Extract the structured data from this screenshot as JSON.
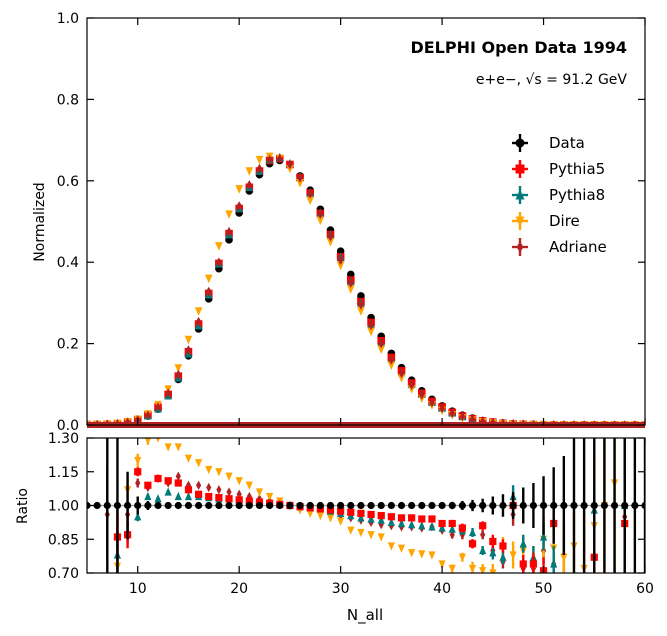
{
  "chart_data": {
    "type": "scatter",
    "title": "DELPHI Open Data 1994",
    "subtitle": "e+e−, √s = 91.2 GeV",
    "xlabel": "N_all",
    "xlim": [
      5,
      60
    ],
    "xticks": [
      "10",
      "20",
      "30",
      "40",
      "50",
      "60"
    ],
    "main_panel": {
      "ylabel": "Normalized",
      "ylim": [
        0.0,
        1.0
      ],
      "yticks": [
        "0.0",
        "0.2",
        "0.4",
        "0.6",
        "0.8",
        "1.0"
      ]
    },
    "ratio_panel": {
      "ylabel": "Ratio",
      "ylim": [
        0.7,
        1.3
      ],
      "yticks": [
        "0.70",
        "0.85",
        "1.00",
        "1.15",
        "1.30"
      ],
      "reference_line": 1.0
    },
    "legend": {
      "position": "center-right",
      "entries": [
        "Data",
        "Pythia5",
        "Pythia8",
        "Dire",
        "Adriane"
      ]
    },
    "x": [
      5,
      6,
      7,
      8,
      9,
      10,
      11,
      12,
      13,
      14,
      15,
      16,
      17,
      18,
      19,
      20,
      21,
      22,
      23,
      24,
      25,
      26,
      27,
      28,
      29,
      30,
      31,
      32,
      33,
      34,
      35,
      36,
      37,
      38,
      39,
      40,
      41,
      42,
      43,
      44,
      45,
      46,
      47,
      48,
      49,
      50,
      51,
      52,
      53,
      54,
      55,
      56,
      57,
      58,
      59,
      60
    ],
    "series": [
      {
        "name": "Data",
        "color": "#000000",
        "marker": "circle",
        "values": [
          0.001,
          0.001,
          0.002,
          0.003,
          0.006,
          0.012,
          0.022,
          0.039,
          0.072,
          0.112,
          0.17,
          0.236,
          0.31,
          0.384,
          0.455,
          0.521,
          0.575,
          0.615,
          0.642,
          0.65,
          0.64,
          0.612,
          0.577,
          0.53,
          0.479,
          0.427,
          0.37,
          0.317,
          0.264,
          0.218,
          0.176,
          0.141,
          0.11,
          0.084,
          0.063,
          0.047,
          0.034,
          0.024,
          0.017,
          0.011,
          0.0075,
          0.005,
          0.003,
          0.002,
          0.0013,
          0.0008,
          0.0005,
          0.0003,
          0.0002,
          0.0001,
          0.0001,
          0.0001,
          0.0,
          0.0,
          0.0,
          0.0
        ],
        "ratio": [
          1.0,
          1.0,
          1.0,
          1.0,
          1.0,
          1.0,
          1.0,
          1.0,
          1.0,
          1.0,
          1.0,
          1.0,
          1.0,
          1.0,
          1.0,
          1.0,
          1.0,
          1.0,
          1.0,
          1.0,
          1.0,
          1.0,
          1.0,
          1.0,
          1.0,
          1.0,
          1.0,
          1.0,
          1.0,
          1.0,
          1.0,
          1.0,
          1.0,
          1.0,
          1.0,
          1.0,
          1.0,
          1.0,
          1.0,
          1.0,
          1.0,
          1.0,
          1.0,
          1.0,
          1.0,
          1.0,
          1.0,
          1.0,
          1.0,
          1.0,
          1.0,
          1.0,
          1.0,
          1.0,
          1.0,
          1.0
        ],
        "ratio_err": [
          0,
          0,
          0.35,
          0.3,
          0.15,
          0.04,
          0.02,
          0.01,
          0.006,
          0.005,
          0.004,
          0.003,
          0.003,
          0.003,
          0.003,
          0.003,
          0.003,
          0.003,
          0.003,
          0.003,
          0.003,
          0.003,
          0.003,
          0.003,
          0.003,
          0.004,
          0.004,
          0.004,
          0.005,
          0.005,
          0.006,
          0.007,
          0.008,
          0.009,
          0.011,
          0.013,
          0.016,
          0.02,
          0.025,
          0.03,
          0.04,
          0.05,
          0.06,
          0.08,
          0.1,
          0.13,
          0.17,
          0.22,
          0.3,
          0.35,
          0.4,
          0.45,
          0.5,
          0.5,
          0.5,
          0.5
        ]
      },
      {
        "name": "Pythia5",
        "color": "#ff0000",
        "marker": "square",
        "values": [
          0.001,
          0.001,
          0.002,
          0.003,
          0.007,
          0.013,
          0.024,
          0.044,
          0.075,
          0.12,
          0.18,
          0.248,
          0.323,
          0.397,
          0.47,
          0.532,
          0.584,
          0.624,
          0.65,
          0.655,
          0.64,
          0.608,
          0.57,
          0.52,
          0.468,
          0.413,
          0.356,
          0.303,
          0.252,
          0.207,
          0.166,
          0.133,
          0.103,
          0.078,
          0.058,
          0.044,
          0.031,
          0.022,
          0.015,
          0.01,
          0.007,
          0.004,
          0.003,
          0.002,
          0.0011,
          0.0007,
          0.0004,
          0.0002,
          0.0001,
          0.0001,
          0.0001,
          0.0,
          0.0,
          0.0,
          0.0,
          0.0
        ],
        "ratio": [
          null,
          null,
          null,
          0.86,
          0.87,
          1.15,
          1.09,
          1.12,
          1.11,
          1.1,
          1.07,
          1.05,
          1.04,
          1.035,
          1.03,
          1.025,
          1.02,
          1.015,
          1.01,
          1.005,
          1.0,
          0.995,
          0.99,
          0.985,
          0.98,
          0.975,
          0.97,
          0.965,
          0.96,
          0.955,
          0.95,
          0.945,
          0.945,
          0.94,
          0.94,
          0.92,
          0.92,
          0.9,
          0.83,
          0.91,
          0.84,
          0.82,
          1.0,
          0.74,
          0.74,
          0.71,
          0.92,
          null,
          null,
          null,
          0.77,
          null,
          null,
          0.92,
          null,
          null
        ],
        "ratio_err": [
          0,
          0,
          0,
          0.1,
          0.06,
          0.02,
          0.012,
          0.008,
          0.006,
          0.005,
          0.004,
          0.003,
          0.003,
          0.003,
          0.003,
          0.003,
          0.003,
          0.003,
          0.003,
          0.003,
          0.003,
          0.003,
          0.003,
          0.003,
          0.003,
          0.004,
          0.004,
          0.004,
          0.005,
          0.005,
          0.006,
          0.007,
          0.008,
          0.009,
          0.011,
          0.013,
          0.016,
          0.02,
          0.02,
          0.02,
          0.03,
          0.03,
          0.04,
          0.04,
          0.05,
          0.06,
          0.08,
          0,
          0,
          0,
          0.1,
          0,
          0,
          0.1,
          0,
          0
        ]
      },
      {
        "name": "Pythia8",
        "color": "#007a7a",
        "marker": "triangle-up",
        "values": [
          0.001,
          0.001,
          0.002,
          0.003,
          0.006,
          0.012,
          0.023,
          0.04,
          0.072,
          0.116,
          0.175,
          0.244,
          0.32,
          0.396,
          0.468,
          0.532,
          0.584,
          0.624,
          0.652,
          0.657,
          0.642,
          0.61,
          0.571,
          0.521,
          0.468,
          0.412,
          0.353,
          0.3,
          0.248,
          0.203,
          0.162,
          0.129,
          0.1,
          0.076,
          0.056,
          0.042,
          0.03,
          0.021,
          0.014,
          0.009,
          0.006,
          0.004,
          0.003,
          0.002,
          0.001,
          0.0007,
          0.0004,
          0.0002,
          0.0001,
          0.0001,
          0.0,
          0.0,
          0.0,
          0.0,
          0.0,
          0.0
        ],
        "ratio": [
          null,
          null,
          null,
          0.78,
          0.88,
          0.95,
          1.04,
          1.03,
          1.06,
          1.04,
          1.04,
          1.04,
          1.035,
          1.03,
          1.03,
          1.025,
          1.02,
          1.015,
          1.01,
          1.005,
          1.0,
          0.995,
          0.99,
          0.985,
          0.975,
          0.965,
          0.955,
          0.945,
          0.94,
          0.935,
          0.925,
          0.92,
          0.915,
          0.91,
          0.905,
          0.9,
          0.895,
          0.89,
          0.88,
          0.8,
          0.79,
          0.77,
          1.04,
          0.83,
          0.77,
          0.86,
          0.74,
          null,
          null,
          null,
          0.98,
          null,
          null,
          1.0,
          null,
          null
        ],
        "ratio_err": [
          0,
          0,
          0,
          0.1,
          0.05,
          0.02,
          0.012,
          0.008,
          0.006,
          0.005,
          0.004,
          0.003,
          0.003,
          0.003,
          0.003,
          0.003,
          0.003,
          0.003,
          0.003,
          0.003,
          0.003,
          0.003,
          0.003,
          0.003,
          0.003,
          0.004,
          0.004,
          0.004,
          0.005,
          0.005,
          0.006,
          0.007,
          0.008,
          0.009,
          0.011,
          0.013,
          0.016,
          0.02,
          0.02,
          0.02,
          0.03,
          0.03,
          0.05,
          0.04,
          0.05,
          0.06,
          0.08,
          0,
          0,
          0,
          0.12,
          0,
          0,
          0.12,
          0,
          0
        ]
      },
      {
        "name": "Dire",
        "color": "#ffa500",
        "marker": "triangle-down",
        "values": [
          0.001,
          0.001,
          0.002,
          0.004,
          0.008,
          0.014,
          0.027,
          0.05,
          0.088,
          0.14,
          0.21,
          0.28,
          0.36,
          0.44,
          0.518,
          0.58,
          0.624,
          0.652,
          0.66,
          0.655,
          0.63,
          0.595,
          0.552,
          0.503,
          0.45,
          0.392,
          0.334,
          0.28,
          0.23,
          0.186,
          0.147,
          0.116,
          0.089,
          0.066,
          0.049,
          0.036,
          0.025,
          0.017,
          0.012,
          0.008,
          0.005,
          0.003,
          0.002,
          0.001,
          0.0007,
          0.0004,
          0.0002,
          0.0001,
          0.0001,
          0.0,
          0.0,
          0.0,
          0.0,
          0.0,
          0.0,
          0.0
        ],
        "ratio": [
          null,
          null,
          null,
          0.73,
          1.07,
          1.2,
          1.29,
          1.3,
          1.26,
          1.26,
          1.21,
          1.19,
          1.16,
          1.15,
          1.13,
          1.11,
          1.09,
          1.06,
          1.04,
          1.02,
          1.0,
          0.98,
          0.965,
          0.955,
          0.945,
          0.93,
          0.89,
          0.88,
          0.87,
          0.86,
          0.82,
          0.81,
          0.79,
          0.785,
          0.78,
          0.74,
          0.72,
          0.77,
          0.72,
          0.71,
          0.7,
          0.81,
          0.78,
          0.8,
          0.74,
          0.85,
          0.81,
          0.77,
          0.82,
          0.72,
          0.91,
          1.0,
          1.1,
          null,
          null,
          null
        ],
        "ratio_err": [
          0,
          0,
          0,
          0.1,
          0.06,
          0.03,
          0.02,
          0.01,
          0.008,
          0.006,
          0.005,
          0.004,
          0.004,
          0.004,
          0.004,
          0.004,
          0.004,
          0.004,
          0.004,
          0.004,
          0.004,
          0.004,
          0.004,
          0.004,
          0.004,
          0.005,
          0.005,
          0.005,
          0.006,
          0.006,
          0.007,
          0.008,
          0.009,
          0.01,
          0.012,
          0.015,
          0.018,
          0.02,
          0.03,
          0.03,
          0.04,
          0.05,
          0.06,
          0.06,
          0.08,
          0.1,
          0.12,
          0.15,
          0.2,
          0.25,
          0.3,
          0.35,
          0.4,
          0,
          0,
          0
        ]
      },
      {
        "name": "Adriane",
        "color": "#b22222",
        "marker": "diamond",
        "values": [
          0.001,
          0.001,
          0.002,
          0.003,
          0.007,
          0.013,
          0.024,
          0.044,
          0.078,
          0.124,
          0.184,
          0.254,
          0.328,
          0.4,
          0.475,
          0.538,
          0.59,
          0.63,
          0.652,
          0.655,
          0.64,
          0.607,
          0.568,
          0.518,
          0.463,
          0.405,
          0.349,
          0.295,
          0.245,
          0.2,
          0.16,
          0.127,
          0.098,
          0.074,
          0.055,
          0.041,
          0.029,
          0.021,
          0.014,
          0.009,
          0.006,
          0.004,
          0.003,
          0.002,
          0.001,
          0.0007,
          0.0004,
          0.0002,
          0.0001,
          0.0001,
          0.0,
          0.0,
          0.0,
          0.0,
          0.0,
          0.0
        ],
        "ratio": [
          null,
          null,
          0.96,
          0.86,
          0.96,
          1.1,
          1.08,
          1.12,
          1.1,
          1.13,
          1.09,
          1.09,
          1.08,
          1.07,
          1.06,
          1.05,
          1.04,
          1.03,
          1.02,
          1.01,
          1.0,
          0.99,
          0.98,
          0.975,
          0.965,
          0.955,
          0.945,
          0.935,
          0.925,
          0.915,
          0.91,
          0.905,
          0.905,
          0.9,
          0.905,
          0.89,
          0.87,
          0.87,
          0.83,
          0.87,
          0.8,
          0.75,
          0.96,
          0.72,
          0.72,
          0.8,
          0.74,
          0.78,
          null,
          null,
          null,
          null,
          null,
          0.95,
          null,
          null
        ],
        "ratio_err": [
          0,
          0,
          0.2,
          0.15,
          0.06,
          0.02,
          0.012,
          0.008,
          0.006,
          0.005,
          0.004,
          0.003,
          0.003,
          0.003,
          0.003,
          0.003,
          0.003,
          0.003,
          0.003,
          0.003,
          0.003,
          0.003,
          0.003,
          0.003,
          0.003,
          0.004,
          0.004,
          0.004,
          0.005,
          0.005,
          0.006,
          0.007,
          0.008,
          0.009,
          0.011,
          0.013,
          0.016,
          0.02,
          0.02,
          0.02,
          0.03,
          0.03,
          0.05,
          0.04,
          0.05,
          0.06,
          0.08,
          0.1,
          0,
          0,
          0,
          0,
          0,
          0.35,
          0,
          0
        ]
      }
    ]
  }
}
